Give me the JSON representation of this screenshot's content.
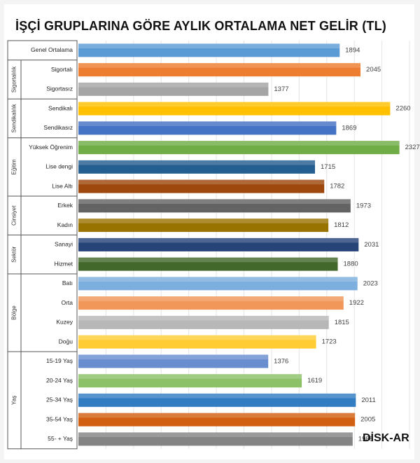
{
  "title": "İŞÇİ GRUPLARINA GÖRE AYLIK ORTALAMA NET GELİR (TL)",
  "source": "DİSK-AR",
  "chart_data": {
    "type": "bar",
    "orientation": "horizontal",
    "title": "İŞÇİ GRUPLARINA GÖRE AYLIK ORTALAMA NET GELİR (TL)",
    "groups": [
      {
        "name": "",
        "items": [
          {
            "label": "Genel Ortalama",
            "value": 1894,
            "color": "#5b9bd5"
          }
        ]
      },
      {
        "name": "Sigortalılık",
        "items": [
          {
            "label": "Sigortalı",
            "value": 2045,
            "color": "#ed7d31"
          },
          {
            "label": "Sigortasız",
            "value": 1377,
            "color": "#a5a5a5"
          }
        ]
      },
      {
        "name": "Sendikalılık",
        "items": [
          {
            "label": "Sendikalı",
            "value": 2260,
            "color": "#ffc000"
          },
          {
            "label": "Sendikasız",
            "value": 1869,
            "color": "#4472c4"
          }
        ]
      },
      {
        "name": "Eğitim",
        "items": [
          {
            "label": "Yüksek Öğrenim",
            "value": 2327,
            "color": "#70ad47"
          },
          {
            "label": "Lise dengi",
            "value": 1715,
            "color": "#255e91"
          },
          {
            "label": "Lise Altı",
            "value": 1782,
            "color": "#9e480e"
          }
        ]
      },
      {
        "name": "Cinsiyet",
        "items": [
          {
            "label": "Erkek",
            "value": 1973,
            "color": "#636363"
          },
          {
            "label": "Kadın",
            "value": 1812,
            "color": "#997300"
          }
        ]
      },
      {
        "name": "Sektör",
        "items": [
          {
            "label": "Sanayi",
            "value": 2031,
            "color": "#264478"
          },
          {
            "label": "Hizmet",
            "value": 1880,
            "color": "#43682b"
          }
        ]
      },
      {
        "name": "Bölge",
        "items": [
          {
            "label": "Batı",
            "value": 2023,
            "color": "#7cafdd"
          },
          {
            "label": "Orta",
            "value": 1922,
            "color": "#f1975a"
          },
          {
            "label": "Kuzey",
            "value": 1815,
            "color": "#b7b7b7"
          },
          {
            "label": "Doğu",
            "value": 1723,
            "color": "#ffcd33"
          }
        ]
      },
      {
        "name": "Yaş",
        "items": [
          {
            "label": "15-19 Yaş",
            "value": 1376,
            "color": "#698ed0"
          },
          {
            "label": "20-24 Yaş",
            "value": 1619,
            "color": "#8cc168"
          },
          {
            "label": "25-34 Yaş",
            "value": 2011,
            "color": "#327dc2"
          },
          {
            "label": "35-54 Yaş",
            "value": 2005,
            "color": "#d26012"
          },
          {
            "label": "55- + Yaş",
            "value": 1988,
            "color": "#848484"
          }
        ]
      }
    ],
    "xlim": [
      0,
      2400
    ],
    "grid": true,
    "legend": "none"
  }
}
